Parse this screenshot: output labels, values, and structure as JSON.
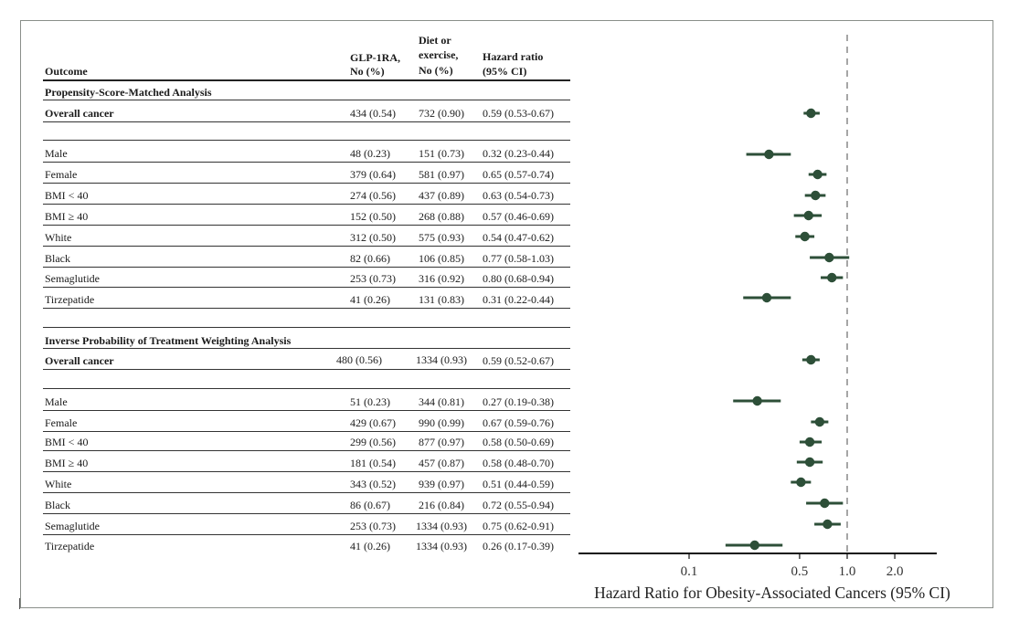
{
  "columns": {
    "outcome": "Outcome",
    "glp_line1": "GLP-1RA,",
    "glp_line2": "No (%)",
    "diet_line1": "Diet or",
    "diet_line2": "exercise,",
    "diet_line3": "No (%)",
    "hr_line1": "Hazard ratio",
    "hr_line2": "(95% CI)"
  },
  "sections": [
    {
      "title": "Propensity-Score-Matched Analysis",
      "rows": [
        {
          "label": "Overall cancer",
          "bold": true,
          "glp": "434 (0.54)",
          "diet": "732 (0.90)",
          "hr": "0.59 (0.53-0.67)"
        },
        {
          "label": "Male",
          "glp": "48  (0.23)",
          "diet": "151 (0.73)",
          "hr": "0.32 (0.23-0.44)"
        },
        {
          "label": "Female",
          "glp": "379 (0.64)",
          "diet": "581 (0.97)",
          "hr": "0.65 (0.57-0.74)"
        },
        {
          "label": "BMI < 40",
          "glp": "274 (0.56)",
          "diet": "437 (0.89)",
          "hr": "0.63 (0.54-0.73)"
        },
        {
          "label": "BMI ≥ 40",
          "glp": "152 (0.50)",
          "diet": "268 (0.88)",
          "hr": "0.57 (0.46-0.69)"
        },
        {
          "label": "White",
          "glp": "312 (0.50)",
          "diet": "575 (0.93)",
          "hr": "0.54 (0.47-0.62)"
        },
        {
          "label": "Black",
          "glp": "82  (0.66)",
          "diet": "106 (0.85)",
          "hr": "0.77 (0.58-1.03)"
        },
        {
          "label": "Semaglutide",
          "glp": "253 (0.73)",
          "diet": "316 (0.92)",
          "hr": "0.80 (0.68-0.94)"
        },
        {
          "label": "Tirzepatide",
          "glp": "41  (0.26)",
          "diet": "131 (0.83)",
          "hr": "0.31 (0.22-0.44)"
        }
      ]
    },
    {
      "title": "Inverse Probability of Treatment Weighting Analysis",
      "rows": [
        {
          "label": "Overall cancer",
          "bold": true,
          "glp": "480 (0.56)",
          "diet": "1334 (0.93)",
          "hr": "0.59 (0.52-0.67)"
        },
        {
          "label": "Male",
          "glp": "51 (0.23)",
          "diet": "344 (0.81)",
          "hr": "0.27 (0.19-0.38)"
        },
        {
          "label": "Female",
          "glp": "429 (0.67)",
          "diet": "990 (0.99)",
          "hr": "0.67 (0.59-0.76)"
        },
        {
          "label": "BMI < 40",
          "glp": "299 (0.56)",
          "diet": "877 (0.97)",
          "hr": "0.58 (0.50-0.69)"
        },
        {
          "label": "BMI ≥ 40",
          "glp": "181 (0.54)",
          "diet": "457 (0.87)",
          "hr": "0.58 (0.48-0.70)"
        },
        {
          "label": "White",
          "glp": "343 (0.52)",
          "diet": "939 (0.97)",
          "hr": "0.51 (0.44-0.59)"
        },
        {
          "label": "Black",
          "glp": "86 (0.67)",
          "diet": "216 (0.84)",
          "hr": "0.72 (0.55-0.94)"
        },
        {
          "label": "Semaglutide",
          "glp": "253 (0.73)",
          "diet": "1334 (0.93)",
          "hr": "0.75 (0.62-0.91)"
        },
        {
          "label": "Tirzepatide",
          "glp": "41 (0.26)",
          "diet": "1334 (0.93)",
          "hr": "0.26 (0.17-0.39)"
        }
      ]
    }
  ],
  "chart_data": {
    "type": "forest",
    "xlabel": "Hazard Ratio for Obesity-Associated Cancers (95% CI)",
    "x_scale": "log",
    "ticks": [
      0.1,
      0.5,
      1.0,
      2.0
    ],
    "tick_labels": [
      "0.1",
      "0.5",
      "1.0",
      "2.0"
    ],
    "reference_line": 1.0,
    "marker_color": "#2d4f38",
    "reference_color": "#888888",
    "estimates": [
      {
        "label": "Overall cancer (PSM)",
        "hr": 0.59,
        "lo": 0.53,
        "hi": 0.67
      },
      {
        "label": "Male (PSM)",
        "hr": 0.32,
        "lo": 0.23,
        "hi": 0.44
      },
      {
        "label": "Female (PSM)",
        "hr": 0.65,
        "lo": 0.57,
        "hi": 0.74
      },
      {
        "label": "BMI < 40 (PSM)",
        "hr": 0.63,
        "lo": 0.54,
        "hi": 0.73
      },
      {
        "label": "BMI ≥ 40 (PSM)",
        "hr": 0.57,
        "lo": 0.46,
        "hi": 0.69
      },
      {
        "label": "White (PSM)",
        "hr": 0.54,
        "lo": 0.47,
        "hi": 0.62
      },
      {
        "label": "Black (PSM)",
        "hr": 0.77,
        "lo": 0.58,
        "hi": 1.03
      },
      {
        "label": "Semaglutide (PSM)",
        "hr": 0.8,
        "lo": 0.68,
        "hi": 0.94
      },
      {
        "label": "Tirzepatide (PSM)",
        "hr": 0.31,
        "lo": 0.22,
        "hi": 0.44
      },
      {
        "label": "Overall cancer (IPTW)",
        "hr": 0.59,
        "lo": 0.52,
        "hi": 0.67
      },
      {
        "label": "Male (IPTW)",
        "hr": 0.27,
        "lo": 0.19,
        "hi": 0.38
      },
      {
        "label": "Female (IPTW)",
        "hr": 0.67,
        "lo": 0.59,
        "hi": 0.76
      },
      {
        "label": "BMI < 40 (IPTW)",
        "hr": 0.58,
        "lo": 0.5,
        "hi": 0.69
      },
      {
        "label": "BMI ≥ 40 (IPTW)",
        "hr": 0.58,
        "lo": 0.48,
        "hi": 0.7
      },
      {
        "label": "White (IPTW)",
        "hr": 0.51,
        "lo": 0.44,
        "hi": 0.59
      },
      {
        "label": "Black (IPTW)",
        "hr": 0.72,
        "lo": 0.55,
        "hi": 0.94
      },
      {
        "label": "Semaglutide (IPTW)",
        "hr": 0.75,
        "lo": 0.62,
        "hi": 0.91
      },
      {
        "label": "Tirzepatide (IPTW)",
        "hr": 0.26,
        "lo": 0.17,
        "hi": 0.39
      }
    ]
  }
}
